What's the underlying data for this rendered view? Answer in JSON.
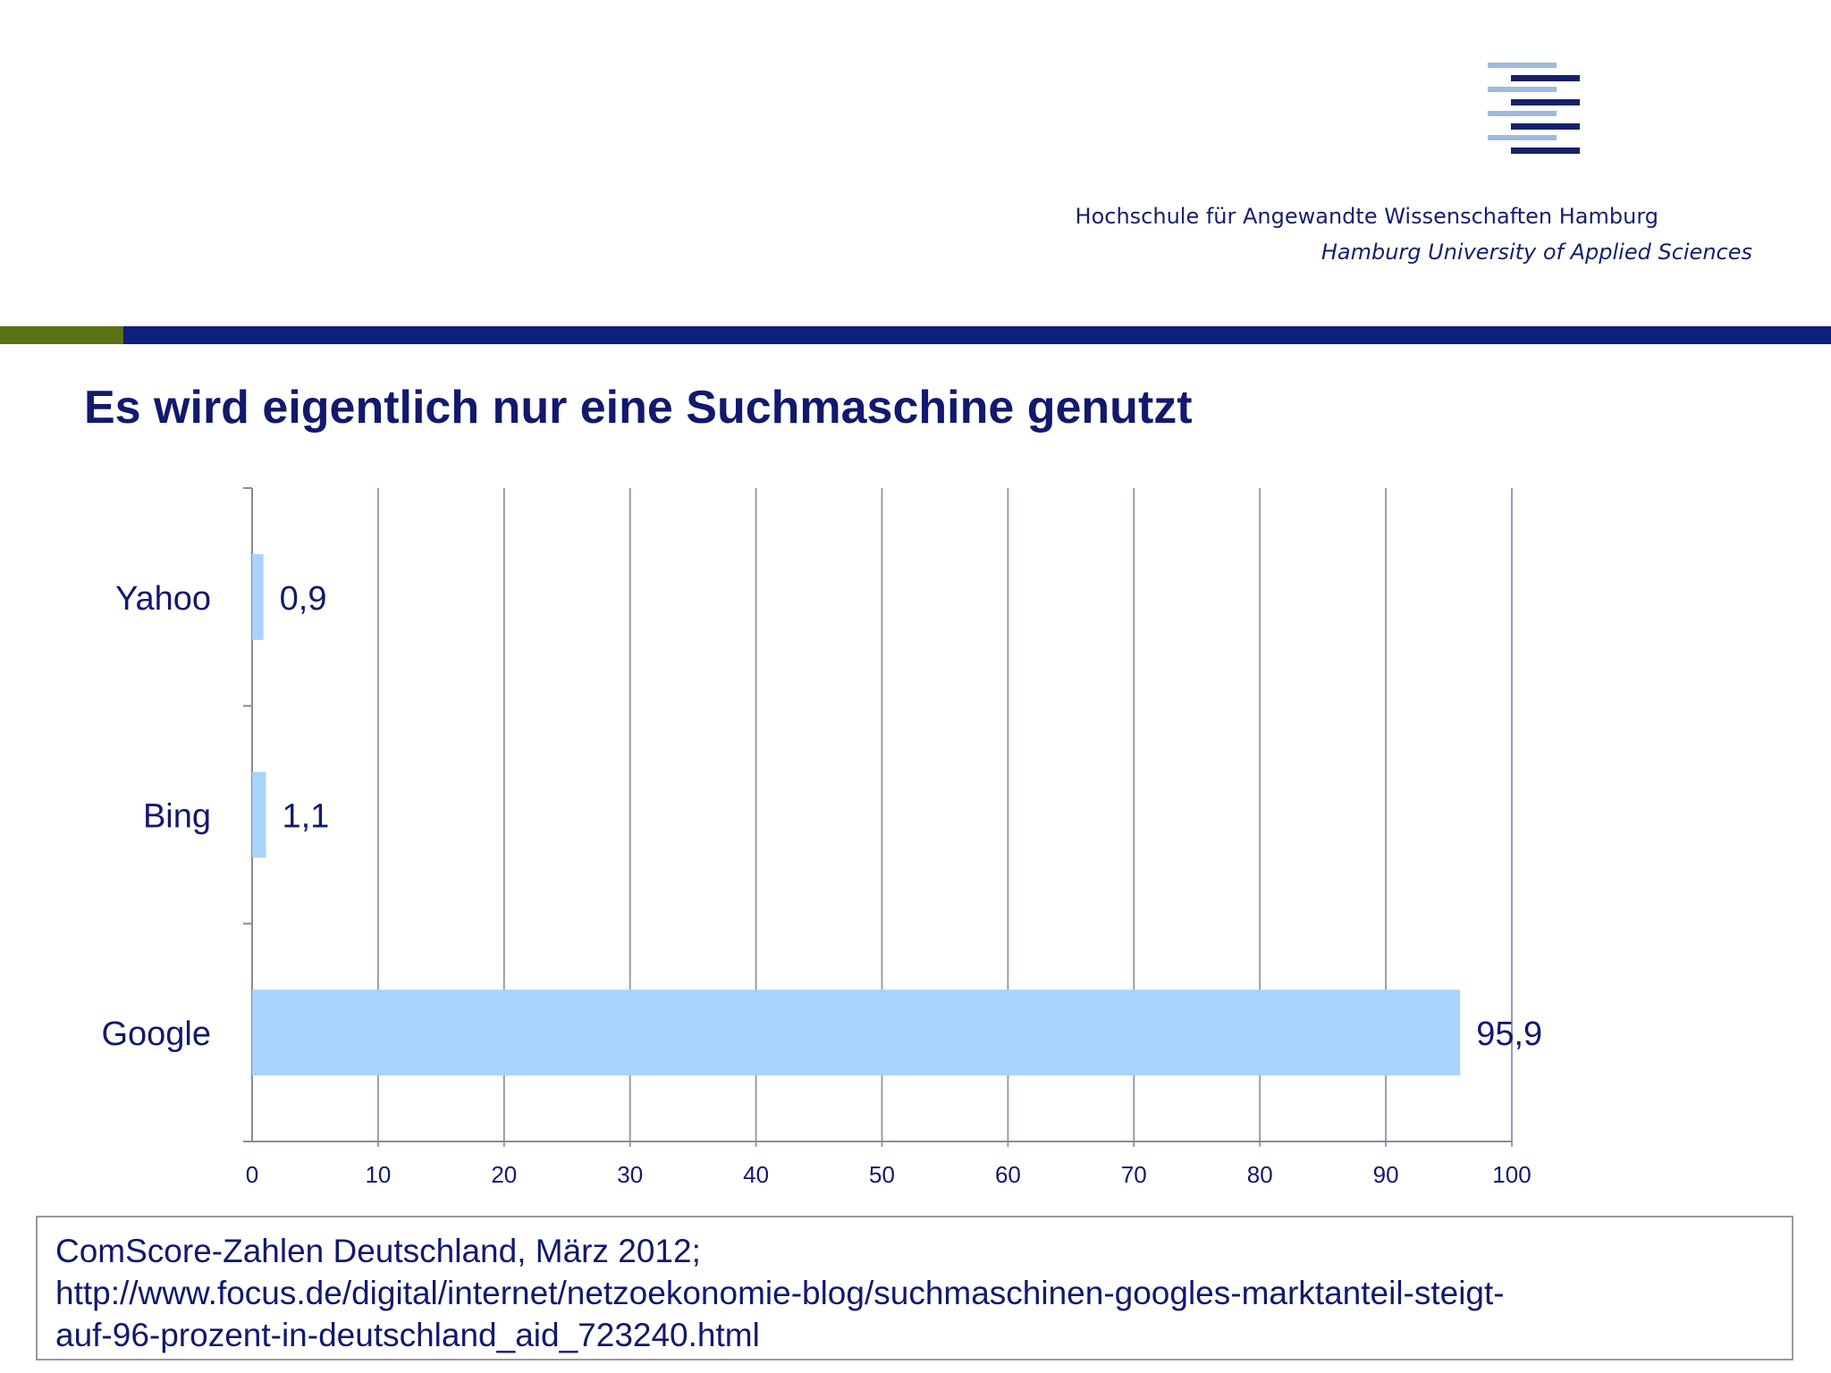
{
  "header": {
    "institution_de": "Hochschule für Angewandte Wissenschaften Hamburg",
    "institution_en": "Hamburg University of Applied Sciences",
    "logo_name": "haw-hamburg-logo",
    "colors": {
      "navy": "#16216b",
      "light_blue": "#9fbadd",
      "band_green": "#5a7317",
      "band_blue": "#0f1f7d"
    }
  },
  "slide": {
    "title": "Es wird eigentlich nur eine Suchmaschine genutzt"
  },
  "chart_data": {
    "type": "bar",
    "orientation": "horizontal",
    "categories": [
      "Yahoo",
      "Bing",
      "Google"
    ],
    "values": [
      0.9,
      1.1,
      95.9
    ],
    "value_labels": [
      "0,9",
      "1,1",
      "95,9"
    ],
    "xlim": [
      0,
      100
    ],
    "x_ticks": [
      "0",
      "10",
      "20",
      "30",
      "40",
      "50",
      "60",
      "70",
      "80",
      "90",
      "100"
    ],
    "grid": "vertical",
    "bar_color": "#a8d4fb",
    "label_color": "#12196e",
    "title": "",
    "xlabel": "",
    "ylabel": ""
  },
  "source": {
    "lines": [
      "ComScore-Zahlen Deutschland, März 2012;",
      "http://www.focus.de/digital/internet/netzoekonomie-blog/suchmaschinen-googles-marktanteil-steigt-",
      "auf-96-prozent-in-deutschland_aid_723240.html"
    ]
  }
}
